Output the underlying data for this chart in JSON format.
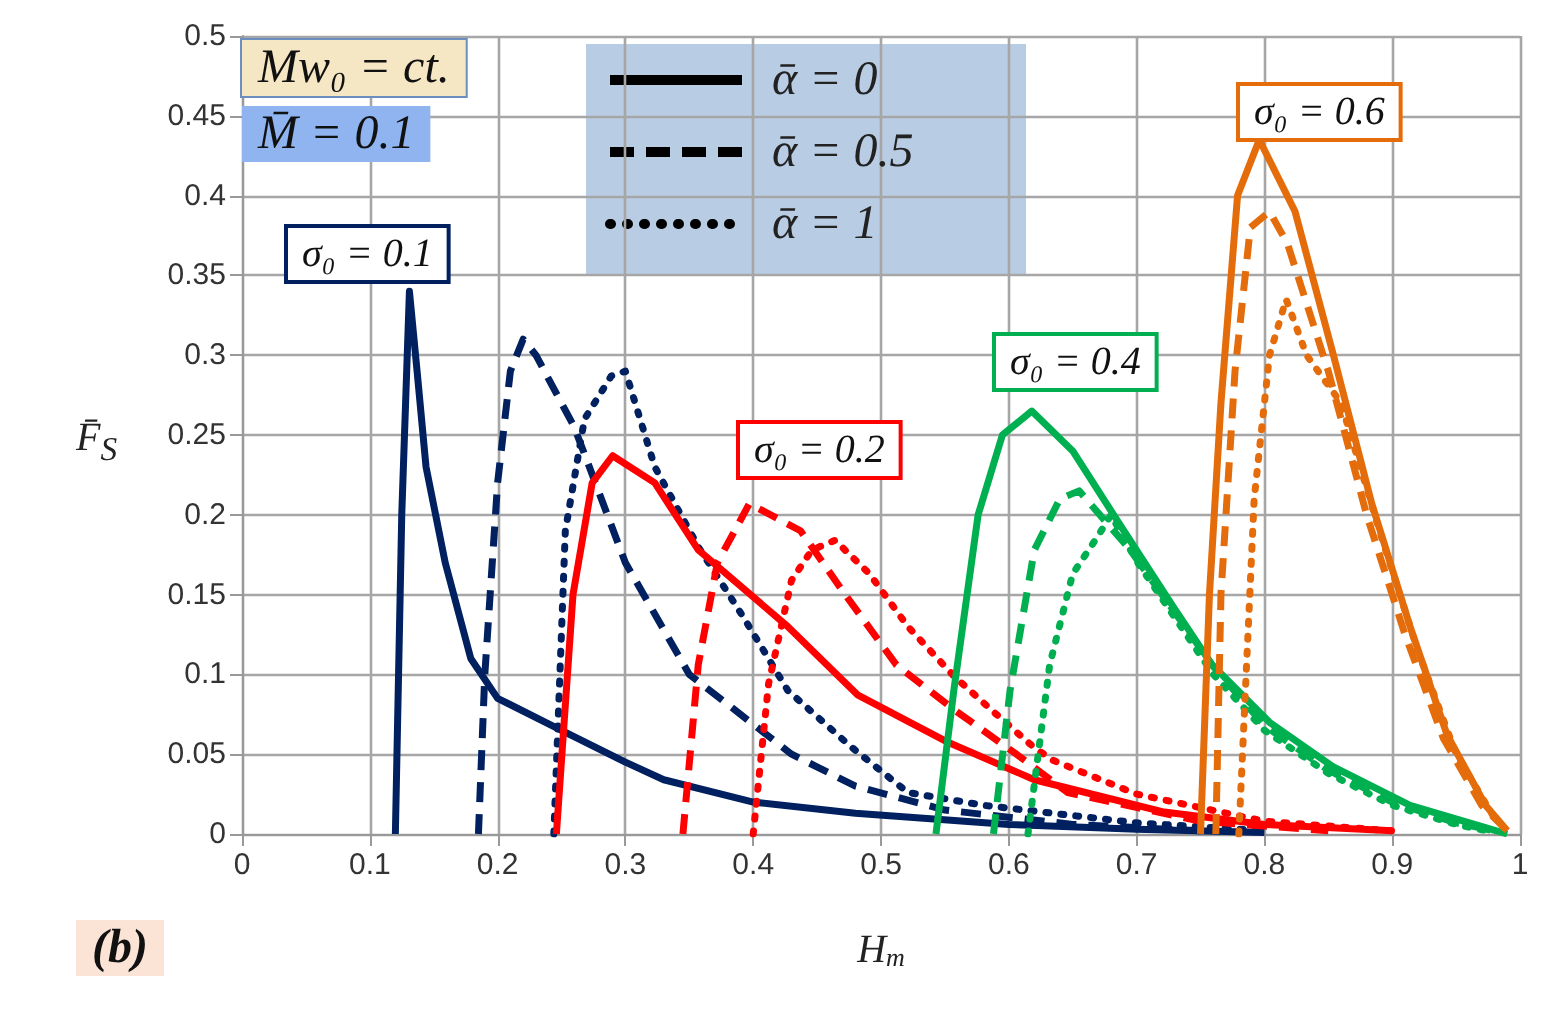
{
  "chart_data": {
    "type": "line",
    "xlabel": "H$_{m}$",
    "ylabel": "F̄$_{S}$",
    "xlim": [
      0,
      1
    ],
    "xticks": [
      0,
      0.1,
      0.2,
      0.3,
      0.4,
      0.5,
      0.6,
      0.7,
      0.8,
      0.9,
      1
    ],
    "ylim": [
      0,
      0.5
    ],
    "yticks": [
      0,
      0.05,
      0.1,
      0.15,
      0.2,
      0.25,
      0.3,
      0.35,
      0.4,
      0.45,
      0.5
    ],
    "grid": true,
    "marker": "none",
    "annotations": [
      "Mw₀ = ct.",
      "M̄ = 0.1",
      "(b)",
      "σ₀ = 0.1",
      "σ₀ = 0.2",
      "σ₀ = 0.4",
      "σ₀ = 0.6",
      "ᾱ = 0",
      "ᾱ = 0.5",
      "ᾱ = 1"
    ],
    "series": [
      {
        "color": "#002060",
        "line_style": "solid",
        "x": [
          0.12,
          0.125,
          0.131,
          0.137,
          0.144,
          0.159,
          0.179,
          0.2,
          0.25,
          0.3,
          0.33,
          0.4,
          0.48,
          0.6,
          0.7,
          0.8
        ],
        "values": [
          0,
          0.2,
          0.34,
          0.29,
          0.23,
          0.17,
          0.11,
          0.085,
          0.065,
          0.045,
          0.034,
          0.02,
          0.013,
          0.006,
          0.003,
          0.001
        ]
      },
      {
        "color": "#002060",
        "line_style": "dashed",
        "x": [
          0.185,
          0.19,
          0.2,
          0.21,
          0.22,
          0.23,
          0.26,
          0.3,
          0.35,
          0.43,
          0.48,
          0.55,
          0.65,
          0.75
        ],
        "values": [
          0,
          0.1,
          0.22,
          0.29,
          0.31,
          0.3,
          0.255,
          0.17,
          0.1,
          0.05,
          0.03,
          0.015,
          0.006,
          0.002
        ]
      },
      {
        "color": "#002060",
        "line_style": "dotted",
        "x": [
          0.244,
          0.253,
          0.268,
          0.289,
          0.3,
          0.323,
          0.357,
          0.393,
          0.427,
          0.476,
          0.521,
          0.58,
          0.7,
          0.8
        ],
        "values": [
          0,
          0.19,
          0.26,
          0.287,
          0.29,
          0.23,
          0.18,
          0.135,
          0.09,
          0.055,
          0.026,
          0.018,
          0.007,
          0.002
        ]
      },
      {
        "color": "#ff0000",
        "line_style": "solid",
        "x": [
          0.246,
          0.259,
          0.274,
          0.29,
          0.323,
          0.357,
          0.427,
          0.482,
          0.551,
          0.62,
          0.72,
          0.8,
          0.9
        ],
        "values": [
          0,
          0.15,
          0.22,
          0.237,
          0.22,
          0.178,
          0.13,
          0.087,
          0.058,
          0.034,
          0.014,
          0.006,
          0.002
        ]
      },
      {
        "color": "#ff0000",
        "line_style": "dashed",
        "x": [
          0.345,
          0.357,
          0.372,
          0.397,
          0.437,
          0.472,
          0.512,
          0.557,
          0.606,
          0.646,
          0.75,
          0.85
        ],
        "values": [
          0,
          0.106,
          0.17,
          0.207,
          0.19,
          0.15,
          0.106,
          0.078,
          0.05,
          0.026,
          0.008,
          0.002
        ]
      },
      {
        "color": "#ff0000",
        "line_style": "dotted",
        "x": [
          0.4,
          0.412,
          0.43,
          0.446,
          0.464,
          0.491,
          0.521,
          0.557,
          0.586,
          0.62,
          0.635,
          0.7,
          0.8,
          0.9
        ],
        "values": [
          0,
          0.094,
          0.159,
          0.178,
          0.184,
          0.163,
          0.13,
          0.099,
          0.078,
          0.054,
          0.046,
          0.025,
          0.008,
          0.002
        ]
      },
      {
        "color": "#00b050",
        "line_style": "solid",
        "x": [
          0.543,
          0.557,
          0.576,
          0.595,
          0.618,
          0.65,
          0.69,
          0.729,
          0.759,
          0.804,
          0.854,
          0.914,
          0.973,
          0.99
        ],
        "values": [
          0,
          0.09,
          0.2,
          0.25,
          0.265,
          0.24,
          0.19,
          0.142,
          0.106,
          0.07,
          0.042,
          0.018,
          0.004,
          0
        ]
      },
      {
        "color": "#00b050",
        "line_style": "dashed",
        "x": [
          0.588,
          0.601,
          0.62,
          0.64,
          0.655,
          0.695,
          0.76,
          0.8,
          0.85,
          0.9,
          0.95,
          0.98
        ],
        "values": [
          0,
          0.09,
          0.178,
          0.21,
          0.215,
          0.178,
          0.105,
          0.068,
          0.04,
          0.02,
          0.007,
          0.002
        ]
      },
      {
        "color": "#00b050",
        "line_style": "dotted",
        "x": [
          0.615,
          0.632,
          0.65,
          0.67,
          0.68,
          0.7,
          0.76,
          0.8,
          0.85,
          0.9,
          0.95,
          0.98
        ],
        "values": [
          0,
          0.106,
          0.163,
          0.187,
          0.2,
          0.171,
          0.1,
          0.065,
          0.038,
          0.018,
          0.006,
          0.001
        ]
      },
      {
        "color": "#e46c0a",
        "line_style": "solid",
        "x": [
          0.75,
          0.757,
          0.766,
          0.779,
          0.796,
          0.824,
          0.854,
          0.884,
          0.914,
          0.943,
          0.973,
          0.99
        ],
        "values": [
          0,
          0.15,
          0.27,
          0.4,
          0.435,
          0.39,
          0.3,
          0.207,
          0.13,
          0.062,
          0.018,
          0.002
        ]
      },
      {
        "color": "#e46c0a",
        "line_style": "dashed",
        "x": [
          0.762,
          0.766,
          0.777,
          0.789,
          0.804,
          0.818,
          0.85,
          0.88,
          0.91,
          0.94,
          0.97,
          0.99
        ],
        "values": [
          0,
          0.15,
          0.29,
          0.38,
          0.39,
          0.37,
          0.29,
          0.2,
          0.125,
          0.06,
          0.018,
          0.002
        ]
      },
      {
        "color": "#e46c0a",
        "line_style": "dotted",
        "x": [
          0.78,
          0.792,
          0.804,
          0.817,
          0.833,
          0.86,
          0.89,
          0.92,
          0.95,
          0.98
        ],
        "values": [
          0,
          0.21,
          0.3,
          0.335,
          0.3,
          0.27,
          0.19,
          0.115,
          0.05,
          0.01
        ]
      }
    ]
  }
}
